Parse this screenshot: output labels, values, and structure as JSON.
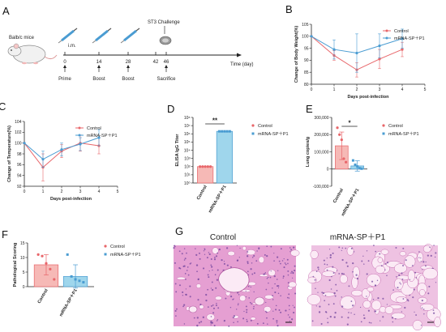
{
  "panels": {
    "A": {
      "label": "A",
      "mouse_label": "Balb/c mice",
      "route_label": "i.m.",
      "challenge_label": "ST3 Challenge",
      "axis_label": "Time (day)",
      "days": [
        "0",
        "14",
        "28",
        "42",
        "46"
      ],
      "events": [
        "Prime",
        "Boost",
        "Boost",
        "Sacrifice"
      ]
    },
    "G": {
      "label": "G",
      "images": [
        "Control",
        "mRNA-SP＋P1"
      ]
    }
  },
  "colors": {
    "control": "#e8666a",
    "treated": "#4a9cd2",
    "control_fill": "#f6b9b6",
    "treated_fill": "#9fd6ec",
    "tissue": "#e6a9d6"
  },
  "chart_data": [
    {
      "panel": "B",
      "label": "B",
      "type": "line",
      "xlabel": "Days post-infection",
      "ylabel": "Change of Body Weight(%)",
      "xlim": [
        0,
        5
      ],
      "ylim": [
        80,
        105
      ],
      "xticks": [
        "0",
        "1",
        "2",
        "3",
        "4",
        "5"
      ],
      "yticks": [
        "80",
        "85",
        "90",
        "95",
        "100",
        "105"
      ],
      "x": [
        0,
        1,
        2,
        3,
        4
      ],
      "series": [
        {
          "name": "Control",
          "values": [
            100,
            92,
            86,
            90.5,
            94.5
          ],
          "errors": [
            0,
            2,
            3,
            4,
            3
          ]
        },
        {
          "name": "mRNA-SP＋P1",
          "values": [
            100,
            94.5,
            93,
            96,
            99
          ],
          "errors": [
            0,
            4,
            8,
            5,
            4
          ]
        }
      ],
      "legend_position": "top-right"
    },
    {
      "panel": "C",
      "label": "C",
      "type": "line",
      "xlabel": "Days post-infection",
      "ylabel": "Change of Temperature(%)",
      "xlim": [
        0,
        5
      ],
      "ylim": [
        92,
        104
      ],
      "xticks": [
        "0",
        "1",
        "2",
        "3",
        "4",
        "5"
      ],
      "yticks": [
        "92",
        "94",
        "96",
        "98",
        "100",
        "102",
        "104"
      ],
      "x": [
        0,
        1,
        2,
        3,
        4
      ],
      "series": [
        {
          "name": "Control",
          "values": [
            100,
            95.5,
            98.5,
            100,
            99.5
          ],
          "errors": [
            0,
            2.5,
            1.2,
            1.5,
            1.5
          ]
        },
        {
          "name": "mRNA-SP＋P1",
          "values": [
            100,
            97,
            98.8,
            99.8,
            101
          ],
          "errors": [
            0,
            1.5,
            1.2,
            1.2,
            1.5
          ]
        }
      ],
      "legend_position": "top-right"
    },
    {
      "panel": "D",
      "label": "D",
      "type": "bar",
      "ylabel": "ELISA IgG Titer",
      "yscale": "log",
      "ylim": [
        1,
        100000000
      ],
      "yticks": [
        "10⁰",
        "10¹",
        "10²",
        "10³",
        "10⁴",
        "10⁵",
        "10⁶",
        "10⁷",
        "10⁸"
      ],
      "categories": [
        "Control",
        "mRNA-SP＋P1"
      ],
      "values": [
        100,
        2000000
      ],
      "points": [
        [
          100,
          100,
          100,
          100,
          100
        ],
        [
          2000000,
          2000000,
          2000000,
          2000000,
          2000000
        ]
      ],
      "significance": "**",
      "legend": [
        "Control",
        "mRNA-SP＋P1"
      ]
    },
    {
      "panel": "E",
      "label": "E",
      "type": "bar",
      "ylabel": "Lung copies/g",
      "ylim": [
        -100000,
        300000
      ],
      "yticks": [
        "-100,000",
        "0",
        "100,000",
        "200,000",
        "300,000"
      ],
      "categories": [
        "Control",
        "mRNA-SP＋P1"
      ],
      "values": [
        135000,
        18000
      ],
      "errors": [
        80000,
        30000
      ],
      "points": [
        [
          240000,
          200000,
          170000,
          60000,
          40000
        ],
        [
          50000,
          25000,
          15000,
          5000,
          2000
        ]
      ],
      "significance": "*",
      "legend": [
        "Control",
        "mRNA-SP＋P1"
      ]
    },
    {
      "panel": "F",
      "label": "F",
      "type": "bar",
      "ylabel": "Pathological Scoring",
      "ylim": [
        0,
        15
      ],
      "yticks": [
        "0",
        "5",
        "10",
        "15"
      ],
      "categories": [
        "Control",
        "mRNA-SP＋P1"
      ],
      "values": [
        7.5,
        3.5
      ],
      "errors": [
        3.5,
        4
      ],
      "points": [
        [
          11,
          10.5,
          8,
          6,
          2.5
        ],
        [
          11,
          3.5,
          2.5,
          2,
          1.5
        ]
      ],
      "legend": [
        "Control",
        "mRNA-SP＋P1"
      ]
    }
  ]
}
